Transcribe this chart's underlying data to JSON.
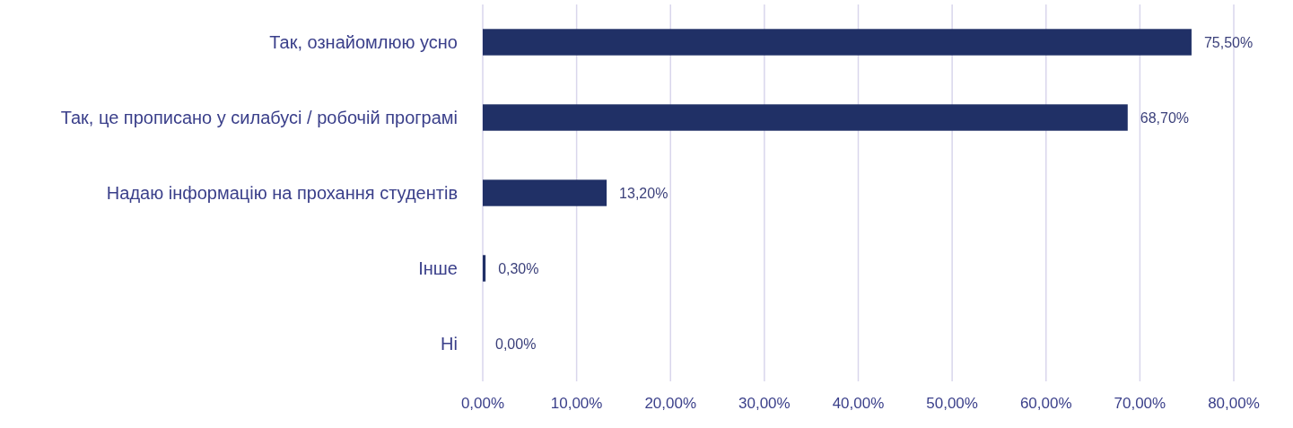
{
  "chart_data": {
    "type": "bar",
    "orientation": "horizontal",
    "categories": [
      "Так, ознайомлюю усно",
      "Так, це прописано у силабусі / робочій програмі",
      "Надаю інформацію на прохання студентів",
      "Інше",
      "Ні"
    ],
    "values": [
      75.5,
      68.7,
      13.2,
      0.3,
      0.0
    ],
    "value_labels": [
      "75,50%",
      "68,70%",
      "13,20%",
      "0,30%",
      "0,00%"
    ],
    "color": "#203066",
    "xlim": [
      0,
      80
    ],
    "xticks": [
      {
        "value": 0,
        "label": "0,00%"
      },
      {
        "value": 10,
        "label": "10,00%"
      },
      {
        "value": 20,
        "label": "20,00%"
      },
      {
        "value": 30,
        "label": "30,00%"
      },
      {
        "value": 40,
        "label": "40,00%"
      },
      {
        "value": 50,
        "label": "50,00%"
      },
      {
        "value": 60,
        "label": "60,00%"
      },
      {
        "value": 70,
        "label": "70,00%"
      },
      {
        "value": 80,
        "label": "80,00%"
      }
    ],
    "grid": "x"
  }
}
